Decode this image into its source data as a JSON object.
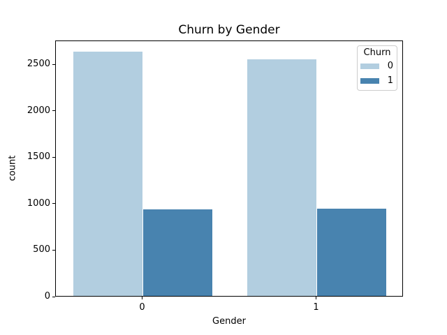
{
  "chart_data": {
    "type": "bar",
    "title": "Churn by Gender",
    "xlabel": "Gender",
    "ylabel": "count",
    "categories": [
      "0",
      "1"
    ],
    "series": [
      {
        "name": "0",
        "color": "#b2cee0",
        "values": [
          2625,
          2549
        ]
      },
      {
        "name": "1",
        "color": "#4883af",
        "values": [
          930,
          939
        ]
      }
    ],
    "yticks": [
      0,
      500,
      1000,
      1500,
      2000,
      2500
    ],
    "ylim": [
      0,
      2756
    ],
    "xlim": [
      -0.5,
      1.5
    ],
    "bar_width": 0.4,
    "grid": false,
    "legend": {
      "title": "Churn",
      "position": "upper right",
      "entries": [
        "0",
        "1"
      ]
    }
  },
  "colors": {
    "axis": "#000000",
    "legend_border": "#cccccc",
    "background": "#ffffff"
  }
}
